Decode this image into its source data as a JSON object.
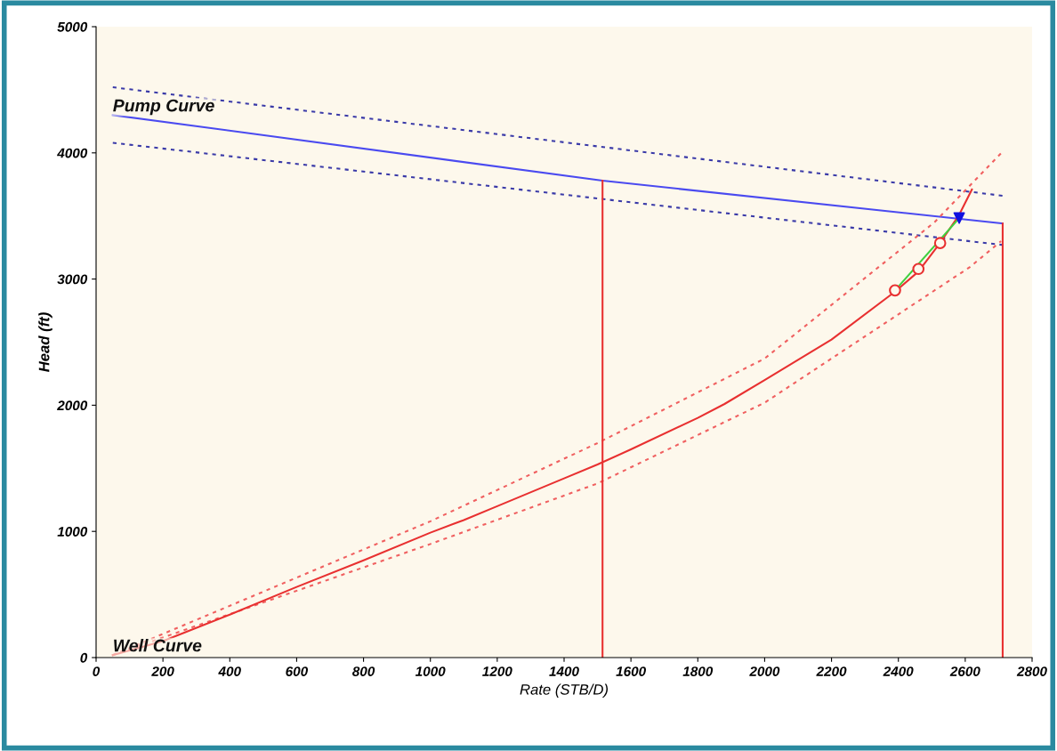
{
  "chart_data": {
    "type": "line",
    "xlabel": "Rate (STB/D)",
    "ylabel": "Head (ft)",
    "xlim": [
      0,
      2800
    ],
    "ylim": [
      0,
      5000
    ],
    "xticks": [
      0,
      200,
      400,
      600,
      800,
      1000,
      1200,
      1400,
      1600,
      1800,
      2000,
      2200,
      2400,
      2600,
      2800
    ],
    "yticks": [
      0,
      1000,
      2000,
      3000,
      4000,
      5000
    ],
    "grid": false,
    "legend": false,
    "annotations": [
      {
        "text": "Pump Curve",
        "x": 50,
        "y": 4300
      },
      {
        "text": "Well Curve",
        "x": 50,
        "y": 20
      }
    ],
    "series": [
      {
        "color": "#3a3aa8",
        "line_style": "dotted",
        "marker": "none",
        "x": [
          50,
          2712
        ],
        "values": [
          4520,
          3660
        ]
      },
      {
        "color": "#3a3aa8",
        "line_style": "dotted",
        "marker": "none",
        "x": [
          50,
          2712
        ],
        "values": [
          4080,
          3270
        ]
      },
      {
        "color": "#4a4af0",
        "line_style": "solid",
        "marker": "none",
        "x": [
          50,
          1515,
          2712
        ],
        "values": [
          4300,
          3780,
          3440
        ]
      },
      {
        "color": "#f06060",
        "line_style": "dotted",
        "marker": "none",
        "x": [
          50,
          1000,
          1500,
          2000,
          2508,
          2712
        ],
        "values": [
          20,
          1080,
          1700,
          2370,
          3450,
          4010
        ]
      },
      {
        "color": "#f06060",
        "line_style": "dotted",
        "marker": "none",
        "x": [
          50,
          1000,
          1500,
          2000,
          2614,
          2707
        ],
        "values": [
          20,
          900,
          1380,
          2020,
          3095,
          3300
        ]
      },
      {
        "color": "#e83030",
        "line_style": "solid",
        "marker": "none",
        "x": [
          50,
          200,
          400,
          600,
          800,
          1000,
          1100,
          1200,
          1400,
          1500,
          1600,
          1800,
          1880,
          2000,
          2200,
          2390,
          2460,
          2520,
          2580,
          2620
        ],
        "values": [
          20,
          130,
          340,
          560,
          770,
          990,
          1090,
          1200,
          1420,
          1530,
          1650,
          1900,
          2010,
          2200,
          2520,
          2900,
          3060,
          3270,
          3500,
          3710
        ]
      },
      {
        "color": "#e83030",
        "line_style": "solid",
        "marker": "none",
        "x": [
          1515,
          1515
        ],
        "values": [
          0,
          3780
        ]
      },
      {
        "color": "#e83030",
        "line_style": "solid",
        "marker": "none",
        "x": [
          2712,
          2712
        ],
        "values": [
          0,
          3440
        ]
      },
      {
        "color": "#40d040",
        "line_style": "solid",
        "marker": "none",
        "x": [
          2390,
          2582
        ],
        "values": [
          2910,
          3483
        ]
      },
      {
        "type": "scatter",
        "color": "#e83030",
        "marker": "circle",
        "x": [
          2390,
          2460,
          2525
        ],
        "values": [
          2910,
          3080,
          3285
        ]
      },
      {
        "type": "scatter",
        "color": "#1010e0",
        "marker": "triangle",
        "x": [
          2582
        ],
        "values": [
          3483
        ]
      }
    ]
  }
}
